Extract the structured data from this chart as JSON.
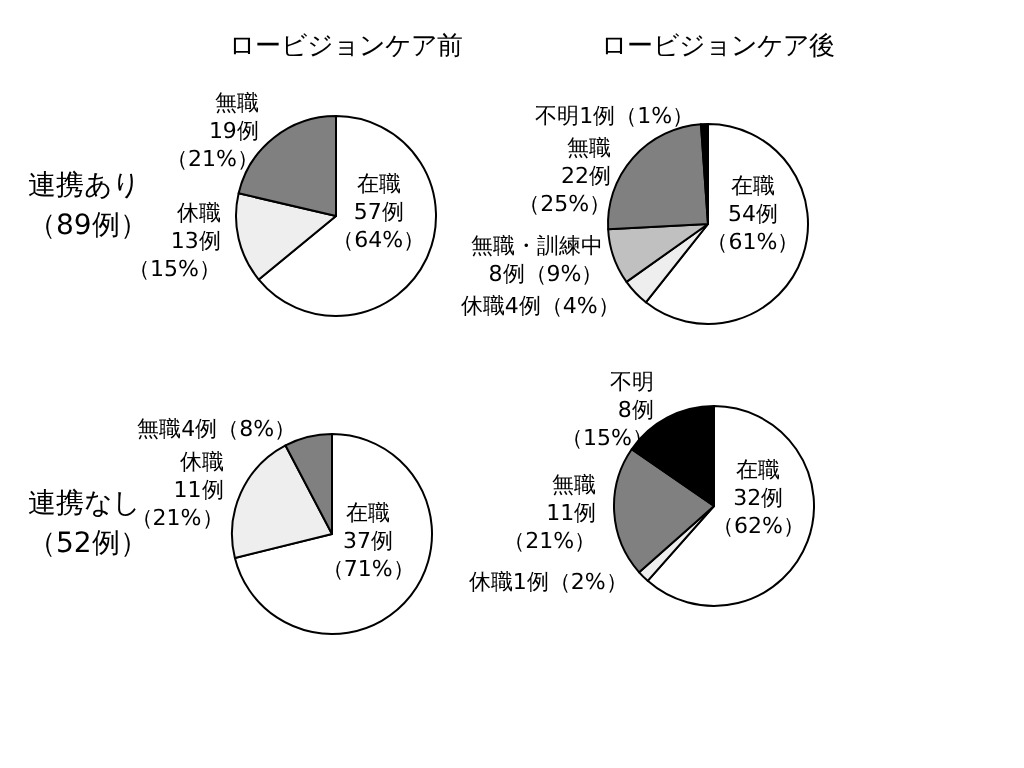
{
  "chart_data": [
    {
      "type": "pie",
      "title": "ロービジョンケア前",
      "annotations": [
        "連携あり（89例）"
      ],
      "categories": [
        "在職",
        "休職",
        "無職"
      ],
      "values": [
        57,
        13,
        19
      ],
      "colors": [
        "#ffffff",
        "#eeeeee",
        "#808080"
      ],
      "value_labels": [
        "57例（64%）",
        "13例（15%）",
        "19例（21%）"
      ]
    },
    {
      "type": "pie",
      "title": "ロービジョンケア後",
      "categories": [
        "在職",
        "休職",
        "無職・訓練中",
        "無職",
        "不明"
      ],
      "values": [
        54,
        4,
        8,
        22,
        1
      ],
      "colors": [
        "#ffffff",
        "#eeeeee",
        "#c0c0c0",
        "#808080",
        "#000000"
      ],
      "value_labels": [
        "54例（61%）",
        "4例（4%）",
        "8例（9%）",
        "22例（25%）",
        "1例（1%）"
      ]
    },
    {
      "type": "pie",
      "annotations": [
        "連携なし（52例）"
      ],
      "categories": [
        "在職",
        "休職",
        "無職"
      ],
      "values": [
        37,
        11,
        4
      ],
      "colors": [
        "#ffffff",
        "#eeeeee",
        "#808080"
      ],
      "value_labels": [
        "37例（71%）",
        "11例（21%）",
        "4例（8%）"
      ]
    },
    {
      "type": "pie",
      "categories": [
        "在職",
        "休職",
        "無職",
        "不明"
      ],
      "values": [
        32,
        1,
        11,
        8
      ],
      "colors": [
        "#ffffff",
        "#eeeeee",
        "#808080",
        "#000000"
      ],
      "value_labels": [
        "32例（62%）",
        "1例（2%）",
        "11例（21%）",
        "8例（15%）"
      ]
    }
  ]
}
